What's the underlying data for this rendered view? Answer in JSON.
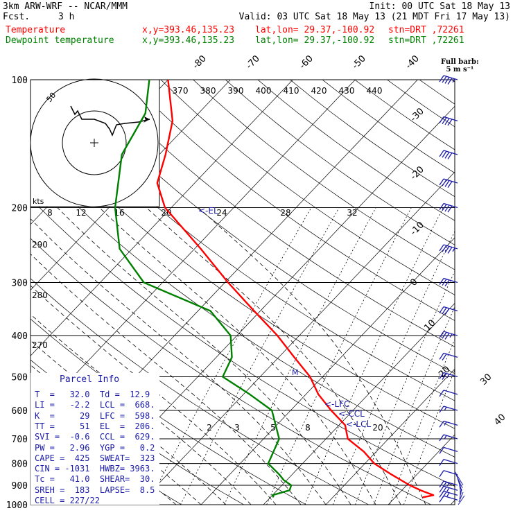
{
  "header": {
    "model_line": "3km ARW-WRF -- NCAR/MMM",
    "fcst_label": "Fcst.",
    "fcst_value": "3 h",
    "init_line": "Init: 00 UTC Sat 18 May 13",
    "valid_line": "Valid: 03 UTC Sat 18 May 13 (21 MDT Fri 17 May 13)"
  },
  "legend_rows": [
    {
      "name": "Temperature",
      "xy": "x,y=393.46,135.23",
      "latlon": "lat,lon= 29.37,-100.92",
      "stn": "stn=DRT ,72261",
      "color": "#ff0000"
    },
    {
      "name": "Dewpoint temperature",
      "xy": "x,y=393.46,135.23",
      "latlon": "lat,lon= 29.37,-100.92",
      "stn": "stn=DRT ,72261",
      "color": "#008000"
    }
  ],
  "barb_legend": {
    "line1": "Full barb:",
    "line2": "5 m s⁻¹"
  },
  "parcel_info": {
    "title": "Parcel Info",
    "rows": [
      "T  =   32.0  Td =  12.9",
      "LI =   -2.2  LCL =  668.",
      "K  =     29  LFC =  598.",
      "TT =     51  EL  =  206.",
      "SVI =  -0.6  CCL =  629.",
      "PW =   2.96  YGP =   0.2",
      "CAPE =  425  SWEAT=  323",
      "CIN = -1031  HWBZ= 3963.",
      "Tc =   41.0  SHEAR=  30.",
      "SREH =  183  LAPSE=  8.5",
      "CELL = 227/22"
    ]
  },
  "hodograph": {
    "unit_label": "kts",
    "ring_label": "50"
  },
  "chart_data": {
    "type": "line",
    "title": "",
    "y_axis": {
      "label": "",
      "scale": "log-pressure",
      "ylim": [
        1000,
        100
      ]
    },
    "pressure_ticks": [
      100,
      200,
      300,
      400,
      500,
      600,
      700,
      800,
      900,
      1000
    ],
    "isotherm_labels": [
      "-80",
      "-70",
      "-60",
      "-50",
      "-40",
      "-30",
      "-20",
      "-10",
      "0",
      "10",
      "20",
      "30",
      "40"
    ],
    "theta_labels": [
      "370",
      "380",
      "390",
      "400",
      "410",
      "420",
      "430",
      "440"
    ],
    "dry_adiabat_labels": [
      "290",
      "280",
      "270"
    ],
    "mixing_ratio_labels_upper": [
      "8",
      "12",
      "16",
      "20",
      "24",
      "28",
      "32"
    ],
    "mixing_ratio_labels_lower": [
      "2",
      "3",
      "5",
      "8",
      "20"
    ],
    "parcel_markers": [
      "<-EL",
      "<-LFC",
      "<-CCL",
      "<-LCL"
    ],
    "series": [
      {
        "name": "Temperature",
        "color": "#ff0000",
        "points": [
          [
            961,
            34.4
          ],
          [
            950,
            35.8
          ],
          [
            925,
            33.0
          ],
          [
            900,
            30.5
          ],
          [
            850,
            26.0
          ],
          [
            800,
            21.5
          ],
          [
            750,
            18.0
          ],
          [
            700,
            13.5
          ],
          [
            650,
            11.0
          ],
          [
            600,
            6.5
          ],
          [
            550,
            2.0
          ],
          [
            500,
            -2.0
          ],
          [
            450,
            -7.5
          ],
          [
            400,
            -13.5
          ],
          [
            350,
            -21.0
          ],
          [
            300,
            -29.5
          ],
          [
            250,
            -39.0
          ],
          [
            200,
            -51.0
          ],
          [
            175,
            -56.0
          ],
          [
            150,
            -59.0
          ],
          [
            125,
            -63.0
          ],
          [
            100,
            -70.0
          ]
        ]
      },
      {
        "name": "Dewpoint temperature",
        "color": "#008000",
        "points": [
          [
            961,
            10.5
          ],
          [
            950,
            10.0
          ],
          [
            925,
            12.0
          ],
          [
            900,
            11.5
          ],
          [
            875,
            9.5
          ],
          [
            850,
            8.0
          ],
          [
            800,
            4.5
          ],
          [
            700,
            2.5
          ],
          [
            600,
            -3.0
          ],
          [
            550,
            -9.0
          ],
          [
            500,
            -16.0
          ],
          [
            450,
            -17.5
          ],
          [
            400,
            -21.0
          ],
          [
            350,
            -28.0
          ],
          [
            300,
            -43.0
          ],
          [
            250,
            -52.0
          ],
          [
            200,
            -59.0
          ],
          [
            150,
            -66.0
          ],
          [
            120,
            -68.5
          ],
          [
            100,
            -73.0
          ]
        ]
      }
    ],
    "wind_profile": [
      {
        "p": 975,
        "speed_kt": 10
      },
      {
        "p": 950,
        "speed_kt": 15
      },
      {
        "p": 925,
        "speed_kt": 15
      },
      {
        "p": 900,
        "speed_kt": 15
      },
      {
        "p": 850,
        "speed_kt": 10
      },
      {
        "p": 800,
        "speed_kt": 10
      },
      {
        "p": 750,
        "speed_kt": 10
      },
      {
        "p": 700,
        "speed_kt": 5
      },
      {
        "p": 650,
        "speed_kt": 5
      },
      {
        "p": 600,
        "speed_kt": 5
      },
      {
        "p": 550,
        "speed_kt": 10
      },
      {
        "p": 500,
        "speed_kt": 15
      },
      {
        "p": 450,
        "speed_kt": 20
      },
      {
        "p": 400,
        "speed_kt": 25
      },
      {
        "p": 350,
        "speed_kt": 30
      },
      {
        "p": 300,
        "speed_kt": 30
      },
      {
        "p": 250,
        "speed_kt": 35
      },
      {
        "p": 200,
        "speed_kt": 40
      },
      {
        "p": 175,
        "speed_kt": 40
      },
      {
        "p": 150,
        "speed_kt": 40
      },
      {
        "p": 125,
        "speed_kt": 40
      },
      {
        "p": 100,
        "speed_kt": 35
      }
    ],
    "grid": true
  }
}
